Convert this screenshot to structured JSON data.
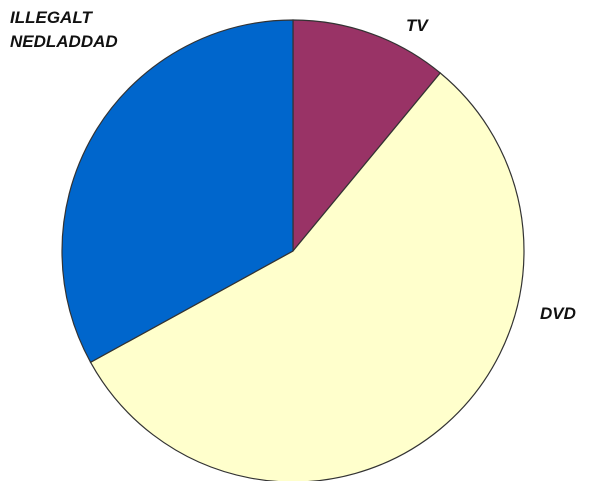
{
  "chart_data": {
    "type": "pie",
    "categories": [
      "TV",
      "DVD",
      "ILLEGALT NEDLADDAD"
    ],
    "values": [
      11,
      56,
      33
    ],
    "colors": [
      "#993366",
      "#ffffcc",
      "#0066cc"
    ]
  }
}
